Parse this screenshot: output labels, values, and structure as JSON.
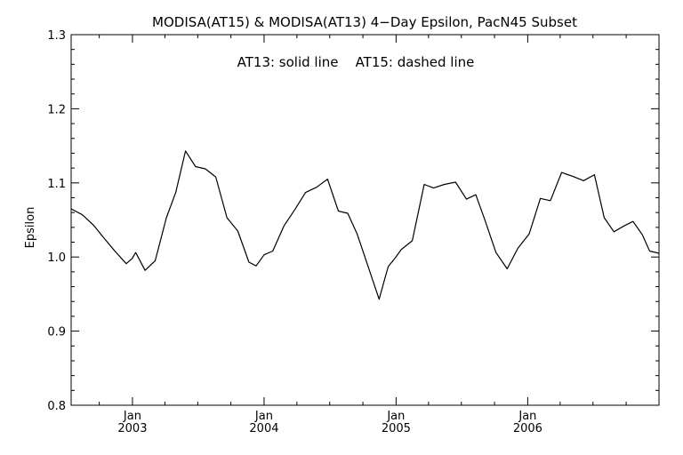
{
  "chart_data": {
    "type": "line",
    "title": "MODISA(AT15) & MODISA(AT13) 4−Day Epsilon, PacN45 Subset",
    "annotation": "AT13: solid line    AT15: dashed line",
    "xlabel": "",
    "ylabel": "Epsilon",
    "xlim": [
      "2002-07-15",
      "2006-12-31"
    ],
    "ylim": [
      0.8,
      1.3
    ],
    "yticks": [
      "0.8",
      "0.9",
      "1.0",
      "1.1",
      "1.2",
      "1.3"
    ],
    "xticks": [
      {
        "date": "2003-01-01",
        "month": "Jan",
        "year": "2003"
      },
      {
        "date": "2004-01-01",
        "month": "Jan",
        "year": "2004"
      },
      {
        "date": "2005-01-01",
        "month": "Jan",
        "year": "2005"
      },
      {
        "date": "2006-01-01",
        "month": "Jan",
        "year": "2006"
      }
    ],
    "grid": false,
    "series": [
      {
        "style": "solid",
        "x": [
          "2002-07-15",
          "2002-08-15",
          "2002-09-15",
          "2002-10-15",
          "2002-11-15",
          "2002-12-15",
          "2002-12-31",
          "2003-01-10",
          "2003-02-05",
          "2003-03-05",
          "2003-04-05",
          "2003-05-01",
          "2003-05-28",
          "2003-06-25",
          "2003-07-22",
          "2003-08-20",
          "2003-09-20",
          "2003-10-20",
          "2003-11-20",
          "2003-12-10",
          "2004-01-01",
          "2004-01-25",
          "2004-02-25",
          "2004-03-25",
          "2004-04-25",
          "2004-05-25",
          "2004-06-25",
          "2004-07-25",
          "2004-08-20",
          "2004-09-15",
          "2004-10-15",
          "2004-11-15",
          "2004-12-10",
          "2004-12-30",
          "2005-01-15",
          "2005-02-15",
          "2005-03-20",
          "2005-04-15",
          "2005-05-15",
          "2005-06-15",
          "2005-07-15",
          "2005-08-10",
          "2005-09-05",
          "2005-10-05",
          "2005-11-05",
          "2005-12-05",
          "2006-01-05",
          "2006-02-05",
          "2006-03-05",
          "2006-04-05",
          "2006-05-05",
          "2006-06-05",
          "2006-07-05",
          "2006-08-01",
          "2006-08-28",
          "2006-09-25",
          "2006-10-20",
          "2006-11-15",
          "2006-12-05",
          "2006-12-31"
        ],
        "y": [
          1.065,
          1.057,
          1.043,
          1.025,
          1.007,
          0.991,
          0.998,
          1.006,
          0.982,
          0.995,
          1.053,
          1.087,
          1.143,
          1.122,
          1.119,
          1.108,
          1.053,
          1.035,
          0.993,
          0.988,
          1.003,
          1.008,
          1.042,
          1.063,
          1.087,
          1.094,
          1.105,
          1.062,
          1.059,
          1.031,
          0.988,
          0.943,
          0.987,
          0.999,
          1.01,
          1.022,
          1.098,
          1.093,
          1.098,
          1.101,
          1.078,
          1.084,
          1.049,
          1.006,
          0.984,
          1.012,
          1.031,
          1.079,
          1.076,
          1.114,
          1.109,
          1.103,
          1.111,
          1.053,
          1.034,
          1.042,
          1.048,
          1.03,
          1.008,
          1.005
        ]
      }
    ]
  }
}
